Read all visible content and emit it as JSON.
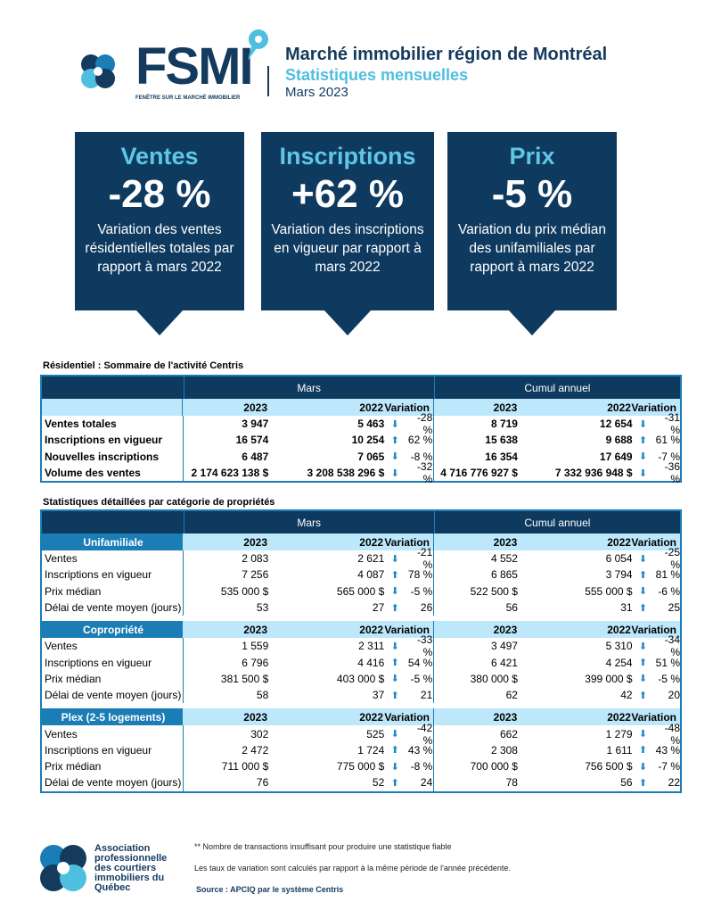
{
  "header": {
    "logo_text": "FSMI",
    "logo_tagline": "FENÊTRE SUR LE MARCHÉ IMMOBILIER",
    "title": "Marché immobilier région de Montréal",
    "subtitle": "Statistiques mensuelles",
    "date": "Mars 2023"
  },
  "callouts": [
    {
      "head": "Ventes",
      "value": "-28 %",
      "desc": "Variation des ventes résidentielles totales par rapport à mars 2022"
    },
    {
      "head": "Inscriptions",
      "value": "+62 %",
      "desc": "Variation des inscriptions en vigueur par rapport à mars 2022"
    },
    {
      "head": "Prix",
      "value": "-5 %",
      "desc": "Variation du prix médian des unifamiliales par rapport à mars 2022"
    }
  ],
  "summary": {
    "title": "Résidentiel : Sommaire de l'activité Centris",
    "group1": "Mars",
    "group2": "Cumul annuel",
    "cols": [
      "2023",
      "2022",
      "Variation",
      "2023",
      "2022",
      "Variation"
    ],
    "rows": [
      {
        "label": "Ventes totales",
        "v": [
          "3 947",
          "5 463",
          "-28 %",
          "8 719",
          "12 654",
          "-31 %"
        ],
        "dir": [
          "down",
          "down"
        ]
      },
      {
        "label": "Inscriptions en vigueur",
        "v": [
          "16 574",
          "10 254",
          "62 %",
          "15 638",
          "9 688",
          "61 %"
        ],
        "dir": [
          "up",
          "up"
        ]
      },
      {
        "label": "Nouvelles inscriptions",
        "v": [
          "6 487",
          "7 065",
          "-8 %",
          "16 354",
          "17 649",
          "-7 %"
        ],
        "dir": [
          "down",
          "down"
        ]
      },
      {
        "label": "Volume des ventes",
        "v": [
          "2 174 623 138  $",
          "3 208 538 296  $",
          "-32 %",
          "4 716 776 927  $",
          "7 332 936 948  $",
          "-36 %"
        ],
        "dir": [
          "down",
          "down"
        ]
      }
    ]
  },
  "detail": {
    "title": "Statistiques détaillées par catégorie de propriétés",
    "group1": "Mars",
    "group2": "Cumul annuel",
    "cols": [
      "2023",
      "2022",
      "Variation",
      "2023",
      "2022",
      "Variation"
    ],
    "sections": [
      {
        "name": "Unifamiliale",
        "rows": [
          {
            "label": "Ventes",
            "v": [
              "2 083",
              "2 621",
              "-21 %",
              "4 552",
              "6 054",
              "-25 %"
            ],
            "dir": [
              "down",
              "down"
            ]
          },
          {
            "label": "Inscriptions en vigueur",
            "v": [
              "7 256",
              "4 087",
              "78 %",
              "6 865",
              "3 794",
              "81 %"
            ],
            "dir": [
              "up",
              "up"
            ]
          },
          {
            "label": "Prix médian",
            "v": [
              "535 000 $",
              "565 000 $",
              "-5 %",
              "522 500 $",
              "555 000 $",
              "-6 %"
            ],
            "dir": [
              "down",
              "down"
            ]
          },
          {
            "label": "Délai de vente moyen (jours)",
            "v": [
              "53",
              "27",
              "26",
              "56",
              "31",
              "25"
            ],
            "dir": [
              "up",
              "up"
            ]
          }
        ]
      },
      {
        "name": "Copropriété",
        "rows": [
          {
            "label": "Ventes",
            "v": [
              "1 559",
              "2 311",
              "-33 %",
              "3 497",
              "5 310",
              "-34 %"
            ],
            "dir": [
              "down",
              "down"
            ]
          },
          {
            "label": "Inscriptions en vigueur",
            "v": [
              "6 796",
              "4 416",
              "54 %",
              "6 421",
              "4 254",
              "51 %"
            ],
            "dir": [
              "up",
              "up"
            ]
          },
          {
            "label": "Prix médian",
            "v": [
              "381 500 $",
              "403 000 $",
              "-5 %",
              "380 000 $",
              "399 000 $",
              "-5 %"
            ],
            "dir": [
              "down",
              "down"
            ]
          },
          {
            "label": "Délai de vente moyen (jours)",
            "v": [
              "58",
              "37",
              "21",
              "62",
              "42",
              "20"
            ],
            "dir": [
              "up",
              "up"
            ]
          }
        ]
      },
      {
        "name": "Plex (2-5 logements)",
        "rows": [
          {
            "label": "Ventes",
            "v": [
              "302",
              "525",
              "-42 %",
              "662",
              "1 279",
              "-48 %"
            ],
            "dir": [
              "down",
              "down"
            ]
          },
          {
            "label": "Inscriptions en vigueur",
            "v": [
              "2 472",
              "1 724",
              "43 %",
              "2 308",
              "1 611",
              "43 %"
            ],
            "dir": [
              "up",
              "up"
            ]
          },
          {
            "label": "Prix médian",
            "v": [
              "711 000 $",
              "775 000 $",
              "-8 %",
              "700 000 $",
              "756 500 $",
              "-7 %"
            ],
            "dir": [
              "down",
              "down"
            ]
          },
          {
            "label": "Délai de vente moyen (jours)",
            "v": [
              "76",
              "52",
              "24",
              "78",
              "56",
              "22"
            ],
            "dir": [
              "up",
              "up"
            ]
          }
        ]
      }
    ]
  },
  "footer": {
    "org": "Association professionnelle des courtiers immobiliers du Québec",
    "note1": "** Nombre de transactions insuffisant pour produire une statistique fiable",
    "note2": "Les taux de variation sont calculés par rapport à la même période de l'année précédente.",
    "source": "Source : APCIQ par le système Centris"
  },
  "colors": {
    "navy": "#0f3a5f",
    "cyan": "#4fbfe0",
    "section": "#1a7db5",
    "light": "#bde8fb",
    "arrow": "#1b8ac4"
  }
}
